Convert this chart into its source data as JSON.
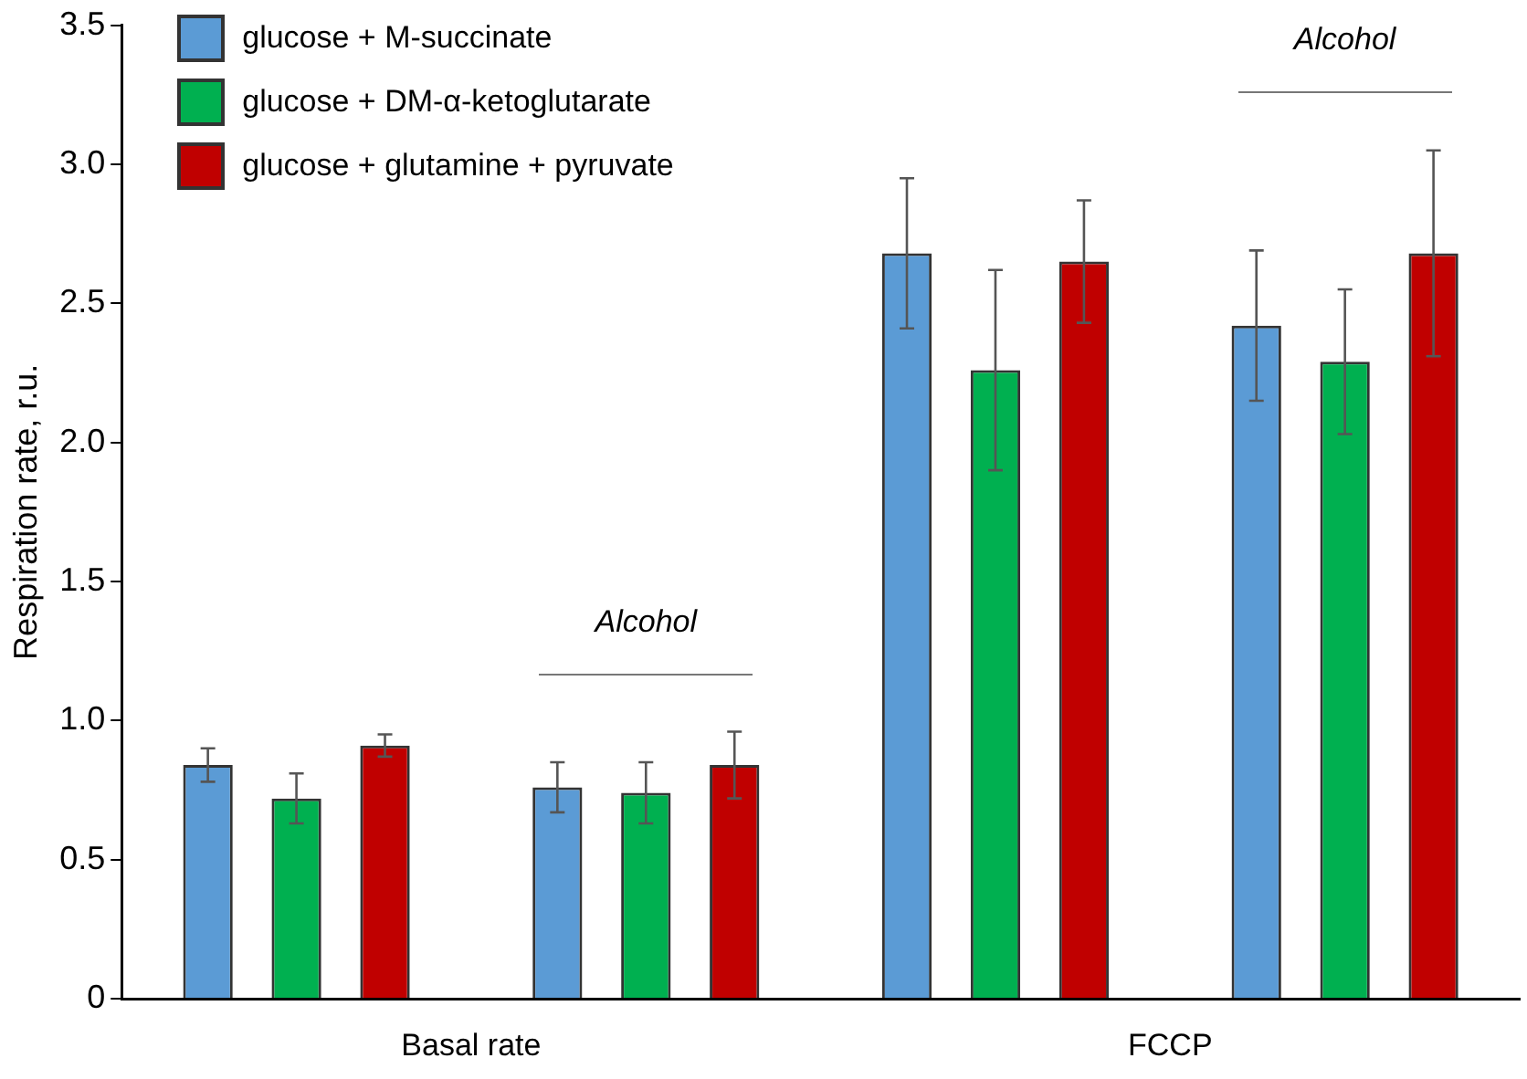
{
  "chart_data": {
    "type": "bar",
    "ylabel": "Respiration rate, r.u.",
    "categories": [
      null,
      null,
      null,
      null
    ],
    "series": [
      {
        "name": "glucose + M-succinate",
        "color": "#5b9bd5",
        "values": [
          0.84,
          0.76,
          2.68,
          2.42
        ],
        "errors": [
          0.06,
          0.09,
          0.27,
          0.27
        ]
      },
      {
        "name": "glucose + DM-α-ketoglutarate",
        "color": "#00b050",
        "values": [
          0.72,
          0.74,
          2.26,
          2.29
        ],
        "errors": [
          0.09,
          0.11,
          0.36,
          0.26
        ]
      },
      {
        "name": "glucose + glutamine + pyruvate",
        "color": "#c00000",
        "values": [
          0.91,
          0.84,
          2.65,
          2.68
        ],
        "errors": [
          0.04,
          0.12,
          0.22,
          0.37
        ]
      }
    ],
    "ylim": [
      0,
      3.5
    ],
    "yticks": [
      {
        "value": 0,
        "label": "0"
      },
      0.5,
      {
        "value": 1,
        "label": "1.0"
      },
      1.5,
      {
        "value": 2,
        "label": "2.0"
      },
      2.5,
      {
        "value": 3,
        "label": "3.0"
      },
      3.5
    ],
    "grid": false,
    "legend": "top left",
    "annotations": [
      "Basal rate",
      "FCCP",
      "Alcohol",
      "Alcohol"
    ]
  }
}
